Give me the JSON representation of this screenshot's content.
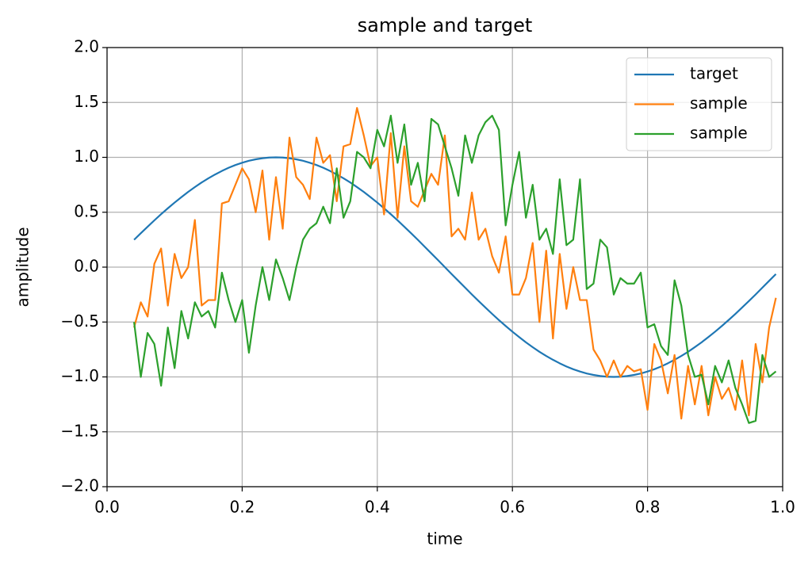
{
  "chart_data": {
    "type": "line",
    "title": "sample and target",
    "xlabel": "time",
    "ylabel": "amplitude",
    "x": [
      0.04,
      0.05,
      0.06,
      0.07,
      0.08,
      0.09,
      0.1,
      0.11,
      0.12,
      0.13,
      0.14,
      0.15,
      0.16,
      0.17,
      0.18,
      0.19,
      0.2,
      0.21,
      0.22,
      0.23,
      0.24,
      0.25,
      0.26,
      0.27,
      0.28,
      0.29,
      0.3,
      0.31,
      0.32,
      0.33,
      0.34,
      0.35,
      0.36,
      0.37,
      0.38,
      0.39,
      0.4,
      0.41,
      0.42,
      0.43,
      0.44,
      0.45,
      0.46,
      0.47,
      0.48,
      0.49,
      0.5,
      0.51,
      0.52,
      0.53,
      0.54,
      0.55,
      0.56,
      0.57,
      0.58,
      0.59,
      0.6,
      0.61,
      0.62,
      0.63,
      0.64,
      0.65,
      0.66,
      0.67,
      0.68,
      0.69,
      0.7,
      0.71,
      0.72,
      0.73,
      0.74,
      0.75,
      0.76,
      0.77,
      0.78,
      0.79,
      0.8,
      0.81,
      0.82,
      0.83,
      0.84,
      0.85,
      0.86,
      0.87,
      0.88,
      0.89,
      0.9,
      0.91,
      0.92,
      0.93,
      0.94,
      0.95,
      0.96,
      0.97,
      0.98,
      0.99
    ],
    "series": [
      {
        "name": "target",
        "color": "#1f77b4",
        "values": [
          0.249,
          0.309,
          0.368,
          0.426,
          0.482,
          0.536,
          0.588,
          0.637,
          0.685,
          0.729,
          0.771,
          0.809,
          0.844,
          0.876,
          0.905,
          0.93,
          0.951,
          0.969,
          0.982,
          0.992,
          0.998,
          1.0,
          0.998,
          0.992,
          0.982,
          0.969,
          0.951,
          0.93,
          0.905,
          0.876,
          0.844,
          0.809,
          0.771,
          0.729,
          0.685,
          0.637,
          0.588,
          0.536,
          0.482,
          0.426,
          0.368,
          0.309,
          0.249,
          0.187,
          0.125,
          0.063,
          0.0,
          -0.063,
          -0.125,
          -0.187,
          -0.249,
          -0.309,
          -0.368,
          -0.426,
          -0.482,
          -0.536,
          -0.588,
          -0.637,
          -0.685,
          -0.729,
          -0.771,
          -0.809,
          -0.844,
          -0.876,
          -0.905,
          -0.93,
          -0.951,
          -0.969,
          -0.982,
          -0.992,
          -0.998,
          -1.0,
          -0.998,
          -0.992,
          -0.982,
          -0.969,
          -0.951,
          -0.93,
          -0.905,
          -0.876,
          -0.844,
          -0.809,
          -0.771,
          -0.729,
          -0.685,
          -0.637,
          -0.588,
          -0.536,
          -0.482,
          -0.426,
          -0.368,
          -0.309,
          -0.249,
          -0.187,
          -0.125,
          -0.063
        ]
      },
      {
        "name": "sample",
        "color": "#ff7f0e",
        "values": [
          -0.55,
          -0.32,
          -0.45,
          0.03,
          0.17,
          -0.35,
          0.12,
          -0.1,
          0.0,
          0.43,
          -0.35,
          -0.3,
          -0.3,
          0.58,
          0.6,
          0.75,
          0.9,
          0.8,
          0.5,
          0.88,
          0.25,
          0.82,
          0.35,
          1.18,
          0.82,
          0.75,
          0.62,
          1.18,
          0.95,
          1.02,
          0.6,
          1.1,
          1.12,
          1.45,
          1.2,
          0.92,
          1.0,
          0.48,
          1.22,
          0.45,
          1.1,
          0.6,
          0.55,
          0.7,
          0.85,
          0.75,
          1.2,
          0.28,
          0.35,
          0.25,
          0.68,
          0.25,
          0.35,
          0.1,
          -0.05,
          0.28,
          -0.25,
          -0.25,
          -0.1,
          0.22,
          -0.5,
          0.15,
          -0.65,
          0.12,
          -0.38,
          0.0,
          -0.3,
          -0.3,
          -0.75,
          -0.85,
          -1.0,
          -0.85,
          -1.0,
          -0.9,
          -0.95,
          -0.93,
          -1.3,
          -0.7,
          -0.85,
          -1.15,
          -0.8,
          -1.38,
          -0.9,
          -1.25,
          -0.9,
          -1.35,
          -1.0,
          -1.2,
          -1.1,
          -1.3,
          -0.85,
          -1.35,
          -0.7,
          -1.05,
          -0.55,
          -0.28
        ]
      },
      {
        "name": "sample",
        "color": "#2ca02c",
        "values": [
          -0.5,
          -1.0,
          -0.6,
          -0.7,
          -1.08,
          -0.55,
          -0.92,
          -0.4,
          -0.65,
          -0.32,
          -0.45,
          -0.4,
          -0.55,
          -0.05,
          -0.3,
          -0.5,
          -0.3,
          -0.78,
          -0.35,
          0.0,
          -0.3,
          0.07,
          -0.1,
          -0.3,
          0.0,
          0.25,
          0.35,
          0.4,
          0.55,
          0.4,
          0.9,
          0.45,
          0.6,
          1.05,
          1.0,
          0.9,
          1.25,
          1.1,
          1.38,
          0.95,
          1.3,
          0.75,
          0.95,
          0.6,
          1.35,
          1.3,
          1.1,
          0.9,
          0.65,
          1.2,
          0.95,
          1.2,
          1.32,
          1.38,
          1.25,
          0.38,
          0.75,
          1.05,
          0.45,
          0.75,
          0.25,
          0.35,
          0.12,
          0.8,
          0.2,
          0.25,
          0.8,
          -0.2,
          -0.15,
          0.25,
          0.18,
          -0.25,
          -0.1,
          -0.15,
          -0.15,
          -0.05,
          -0.55,
          -0.52,
          -0.72,
          -0.8,
          -0.12,
          -0.35,
          -0.8,
          -1.0,
          -0.98,
          -1.25,
          -0.9,
          -1.05,
          -0.85,
          -1.1,
          -1.25,
          -1.42,
          -1.4,
          -0.8,
          -1.0,
          -0.95
        ]
      }
    ],
    "xlim": [
      0,
      1
    ],
    "ylim": [
      -2,
      2
    ],
    "xticks": [
      {
        "value": 0,
        "label": "0.0"
      },
      0.2,
      0.4,
      0.6,
      0.8,
      {
        "value": 1,
        "label": "1.0"
      }
    ],
    "yticks": [
      {
        "value": -2,
        "label": "−2.0"
      },
      {
        "value": -1.5,
        "label": "−1.5"
      },
      {
        "value": -1,
        "label": "−1.0"
      },
      {
        "value": -0.5,
        "label": "−0.5"
      },
      {
        "value": 0,
        "label": "0.0"
      },
      0.5,
      {
        "value": 1,
        "label": "1.0"
      },
      1.5,
      {
        "value": 2,
        "label": "2.0"
      }
    ],
    "grid": true,
    "legend": "upper right"
  }
}
